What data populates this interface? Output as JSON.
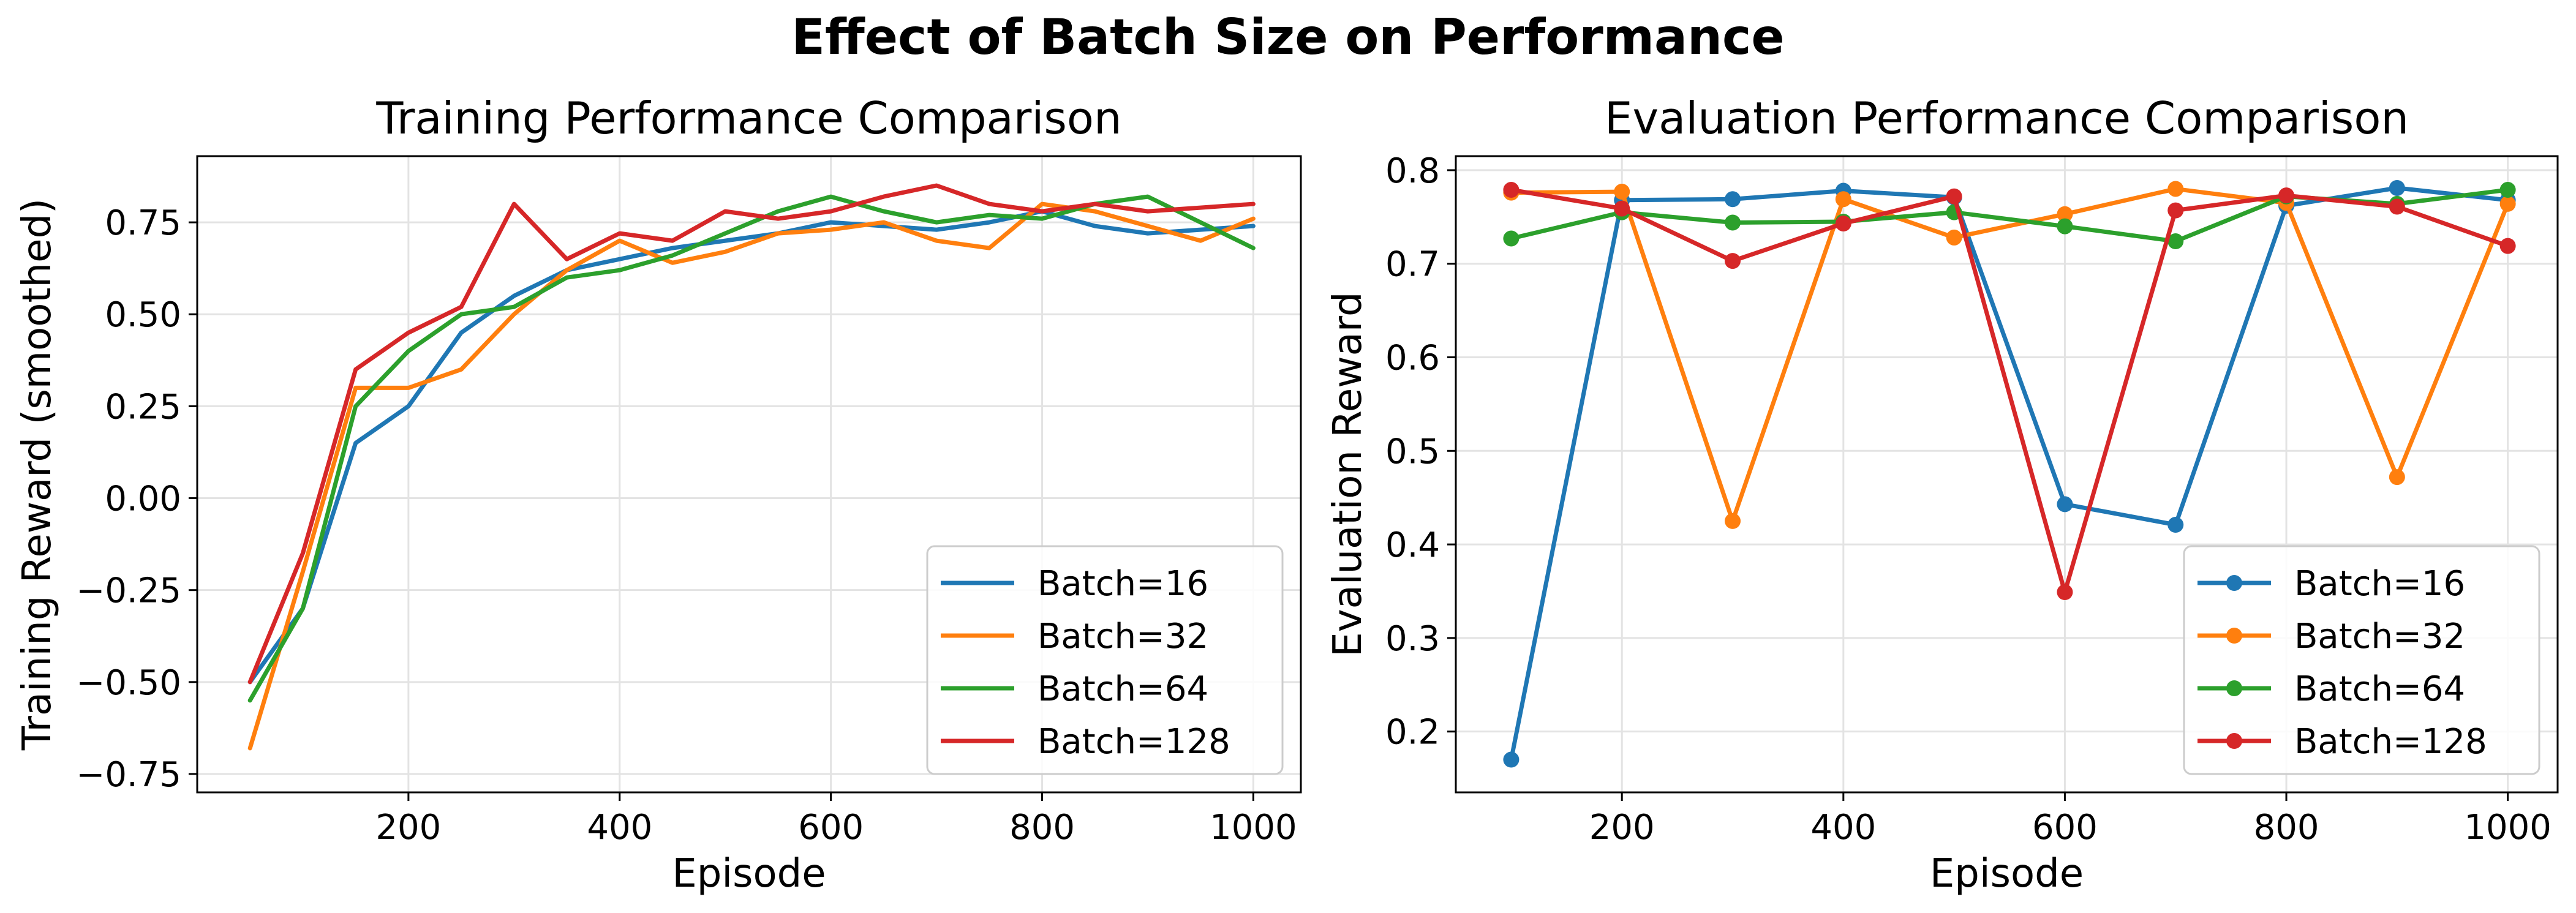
{
  "figure": {
    "title": "Effect of Batch Size on Performance"
  },
  "colors": {
    "Batch=16": "#1f77b4",
    "Batch=32": "#ff7f0e",
    "Batch=64": "#2ca02c",
    "Batch=128": "#d62728"
  },
  "chart_data": [
    {
      "type": "line",
      "title": "Training Performance Comparison",
      "xlabel": "Episode",
      "ylabel": "Training Reward (smoothed)",
      "xlim": [
        0,
        1045
      ],
      "ylim": [
        -0.8,
        0.93
      ],
      "xticks": [
        200,
        400,
        600,
        800,
        1000
      ],
      "yticks": [
        -0.75,
        -0.5,
        -0.25,
        0.0,
        0.25,
        0.5,
        0.75
      ],
      "ytick_labels": [
        "−0.75",
        "−0.50",
        "−0.25",
        "0.00",
        "0.25",
        "0.50",
        "0.75"
      ],
      "grid": true,
      "legend_position": "lower-right",
      "x": [
        50,
        100,
        150,
        200,
        250,
        300,
        350,
        400,
        450,
        500,
        550,
        600,
        650,
        700,
        750,
        800,
        850,
        900,
        950,
        1000
      ],
      "series": [
        {
          "name": "Batch=16",
          "values": [
            -0.5,
            -0.3,
            0.15,
            0.25,
            0.45,
            0.55,
            0.62,
            0.65,
            0.68,
            0.7,
            0.72,
            0.75,
            0.74,
            0.73,
            0.75,
            0.78,
            0.74,
            0.72,
            0.73,
            0.74
          ]
        },
        {
          "name": "Batch=32",
          "values": [
            -0.68,
            -0.2,
            0.3,
            0.3,
            0.35,
            0.5,
            0.62,
            0.7,
            0.64,
            0.67,
            0.72,
            0.73,
            0.75,
            0.7,
            0.68,
            0.8,
            0.78,
            0.74,
            0.7,
            0.76
          ]
        },
        {
          "name": "Batch=64",
          "values": [
            -0.55,
            -0.3,
            0.25,
            0.4,
            0.5,
            0.52,
            0.6,
            0.62,
            0.66,
            0.72,
            0.78,
            0.82,
            0.78,
            0.75,
            0.77,
            0.76,
            0.8,
            0.82,
            0.75,
            0.68
          ]
        },
        {
          "name": "Batch=128",
          "values": [
            -0.5,
            -0.15,
            0.35,
            0.45,
            0.52,
            0.8,
            0.65,
            0.72,
            0.7,
            0.78,
            0.76,
            0.78,
            0.82,
            0.85,
            0.8,
            0.78,
            0.8,
            0.78,
            0.79,
            0.8
          ]
        }
      ]
    },
    {
      "type": "line",
      "title": "Evaluation Performance Comparison",
      "xlabel": "Episode",
      "ylabel": "Evaluation Reward",
      "xlim": [
        50,
        1045
      ],
      "ylim": [
        0.135,
        0.815
      ],
      "xticks": [
        200,
        400,
        600,
        800,
        1000
      ],
      "yticks": [
        0.2,
        0.3,
        0.4,
        0.5,
        0.6,
        0.7,
        0.8
      ],
      "ytick_labels": [
        "0.2",
        "0.3",
        "0.4",
        "0.5",
        "0.6",
        "0.7",
        "0.8"
      ],
      "grid": true,
      "legend_position": "lower-right",
      "markers": true,
      "x": [
        100,
        200,
        300,
        400,
        500,
        600,
        700,
        800,
        900,
        1000
      ],
      "series": [
        {
          "name": "Batch=16",
          "values": [
            0.17,
            0.768,
            0.769,
            0.778,
            0.771,
            0.443,
            0.421,
            0.762,
            0.781,
            0.768
          ]
        },
        {
          "name": "Batch=32",
          "values": [
            0.776,
            0.777,
            0.425,
            0.769,
            0.728,
            0.753,
            0.78,
            0.765,
            0.472,
            0.764
          ]
        },
        {
          "name": "Batch=64",
          "values": [
            0.727,
            0.755,
            0.744,
            0.745,
            0.755,
            0.74,
            0.724,
            0.772,
            0.764,
            0.779
          ]
        },
        {
          "name": "Batch=128",
          "values": [
            0.779,
            0.759,
            0.703,
            0.743,
            0.772,
            0.349,
            0.757,
            0.773,
            0.761,
            0.719
          ]
        }
      ]
    }
  ]
}
